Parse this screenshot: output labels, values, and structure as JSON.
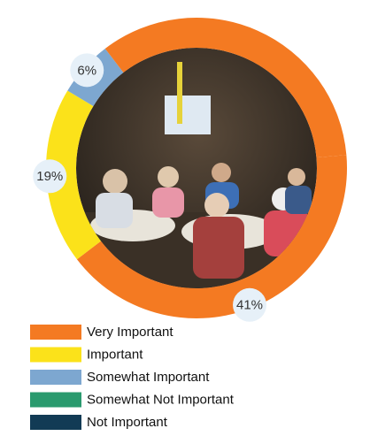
{
  "chart_data": {
    "type": "donut",
    "categories": [
      "Very Important",
      "Important",
      "Somewhat Important",
      "Somewhat Not Important",
      "Not Important",
      null
    ],
    "values": [
      41,
      19,
      6,
      0,
      0,
      34
    ],
    "value_labels": [
      "41%",
      "19%",
      "6%",
      null,
      null,
      null
    ],
    "colors": [
      "#f47a22",
      "#fbe21a",
      "#7da7d0",
      "#2a9a6e",
      "#123b55",
      "#f47a22"
    ]
  }
}
